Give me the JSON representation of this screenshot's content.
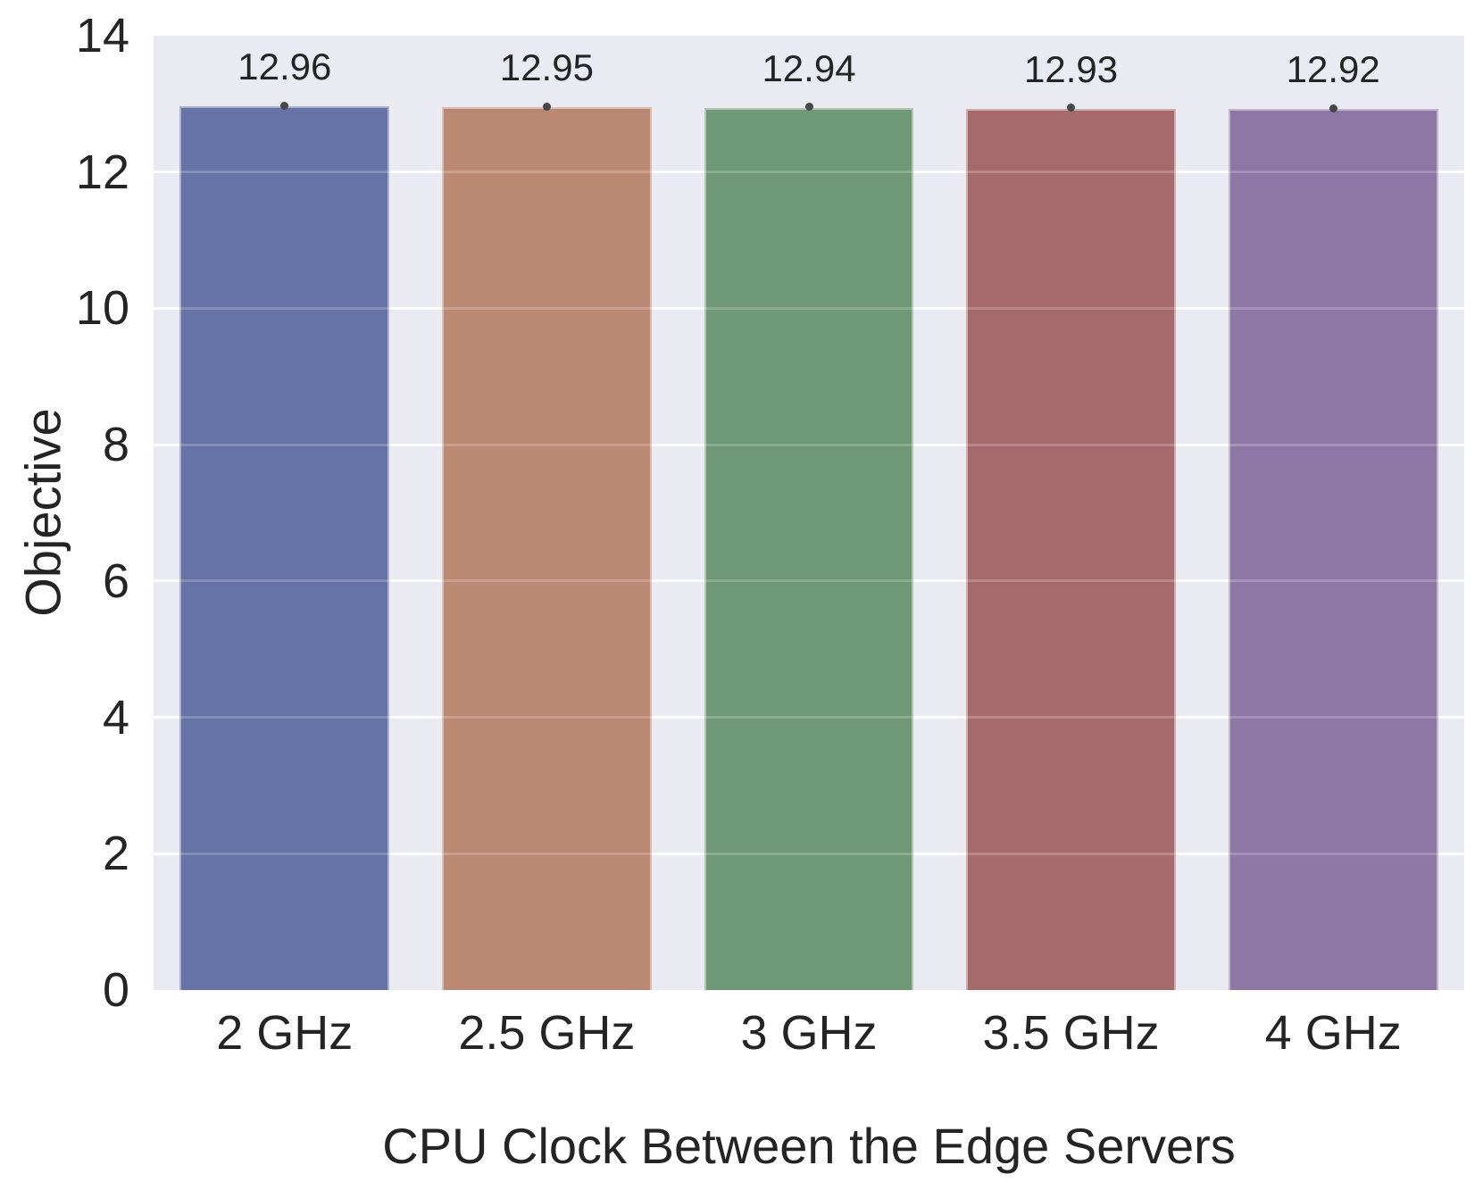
{
  "chart_data": {
    "type": "bar",
    "categories": [
      "2 GHz",
      "2.5 GHz",
      "3 GHz",
      "3.5 GHz",
      "4 GHz"
    ],
    "values": [
      12.96,
      12.95,
      12.94,
      12.93,
      12.92
    ],
    "value_labels": [
      "12.96",
      "12.95",
      "12.94",
      "12.93",
      "12.92"
    ],
    "xlabel": "CPU Clock Between the Edge Servers",
    "ylabel": "Objective",
    "ylim": [
      0,
      14
    ],
    "yticks": [
      0,
      2,
      4,
      6,
      8,
      10,
      12,
      14
    ],
    "grid": true,
    "legend_position": "none",
    "bar_colors": [
      "#6673A6",
      "#BB8873",
      "#6F9876",
      "#A66A6C",
      "#8E76A5"
    ],
    "plot_bg_color": "#E9EAF2",
    "grid_color": "#FFFFFF",
    "text_color": "#242424",
    "marker_color": "#474747",
    "bar_relative_width": 0.8
  }
}
